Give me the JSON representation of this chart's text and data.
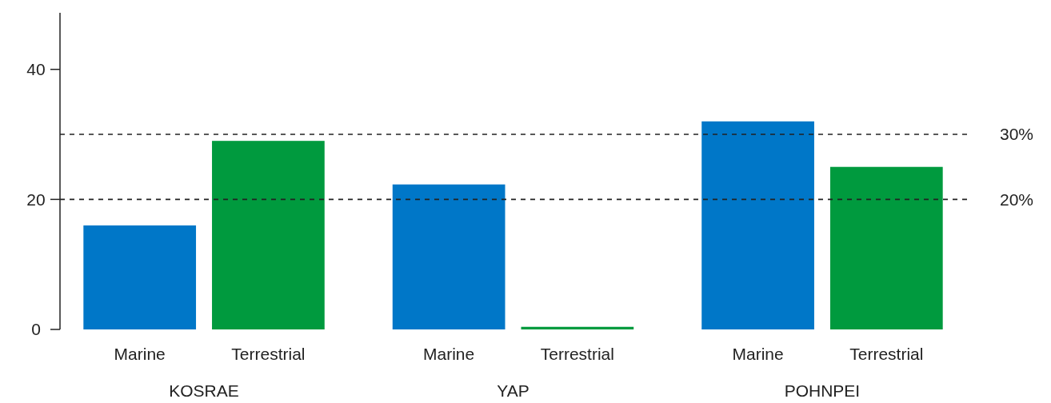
{
  "chart_data": {
    "type": "bar",
    "categories": [
      "KOSRAE",
      "YAP",
      "POHNPEI"
    ],
    "series": [
      {
        "name": "Marine",
        "color": "#0077c8",
        "values": [
          16.0,
          22.3,
          32.0
        ]
      },
      {
        "name": "Terrestrial",
        "color": "#009a3e",
        "values": [
          29.0,
          0.4,
          25.0
        ]
      }
    ],
    "ylim": [
      0,
      48.7
    ],
    "yticks": [
      0,
      20,
      40
    ],
    "grid": false,
    "ref_lines": [
      {
        "axis": "y",
        "value": 30,
        "label": "30%",
        "line_style": "dashed"
      },
      {
        "axis": "y",
        "value": 20,
        "label": "20%",
        "line_style": "dashed"
      }
    ]
  }
}
